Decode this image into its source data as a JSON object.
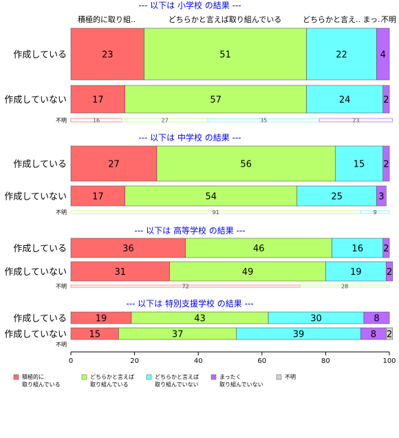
{
  "chart_data": {
    "type": "bar",
    "orientation": "horizontal",
    "stacked": true,
    "xlim": [
      0,
      100
    ],
    "xticks": [
      "0",
      "20",
      "40",
      "60",
      "80",
      "100"
    ],
    "grid": false,
    "legend_position": "bottom",
    "category_names": [
      "積極的に取り組んでいる",
      "どちらかと言えば取り組んでいる",
      "どちらかと言えば取り組んでいない",
      "まったく取り組んでいない",
      "不明"
    ],
    "colors": [
      "#ff6b6b",
      "#b9ff6b",
      "#6bffff",
      "#b96bff",
      "#d3d3d3"
    ],
    "top_header": [
      "積極的に取り組..",
      "どちらかと言えば取り組んでいる",
      "どちらかと言え.. まっ..",
      "不明"
    ],
    "legend": [
      "積極的に\n取り組んでいる",
      "どちらかと言えば\n取り組んでいる",
      "どちらかと言えば\n取り組んでいない",
      "まったく\n取り組んでいない",
      "不明"
    ],
    "panels": [
      {
        "title": "--- 以下は 小学校 の結果 ---",
        "rows": [
          {
            "label": "作成している",
            "values": [
              23,
              51,
              22,
              4,
              0
            ]
          },
          {
            "label": "作成していない",
            "values": [
              17,
              57,
              24,
              2,
              0
            ]
          }
        ],
        "unknown_label": "不明",
        "unknown_values": [
          16,
          27,
          35,
          23,
          0
        ]
      },
      {
        "title": "--- 以下は 中学校 の結果 ---",
        "rows": [
          {
            "label": "作成している",
            "values": [
              27,
              56,
              15,
              2,
              0
            ]
          },
          {
            "label": "作成していない",
            "values": [
              17,
              54,
              25,
              3,
              0
            ]
          }
        ],
        "unknown_label": "不明",
        "unknown_values": [
          0,
          91,
          9,
          0,
          0
        ]
      },
      {
        "title": "--- 以下は 高等学校 の結果 ---",
        "rows": [
          {
            "label": "作成している",
            "values": [
              36,
              46,
              16,
              2,
              0
            ]
          },
          {
            "label": "作成していない",
            "values": [
              31,
              49,
              19,
              2,
              0
            ]
          }
        ],
        "unknown_label": "不明",
        "unknown_values": [
          72,
          28,
          0,
          0,
          0
        ]
      },
      {
        "title": "--- 以下は 特別支援学校 の結果 ---",
        "rows": [
          {
            "label": "作成している",
            "values": [
              19,
              43,
              30,
              8,
              0
            ]
          },
          {
            "label": "作成していない",
            "values": [
              15,
              37,
              39,
              8,
              2
            ]
          }
        ],
        "unknown_label": "不明",
        "unknown_values": []
      }
    ]
  }
}
